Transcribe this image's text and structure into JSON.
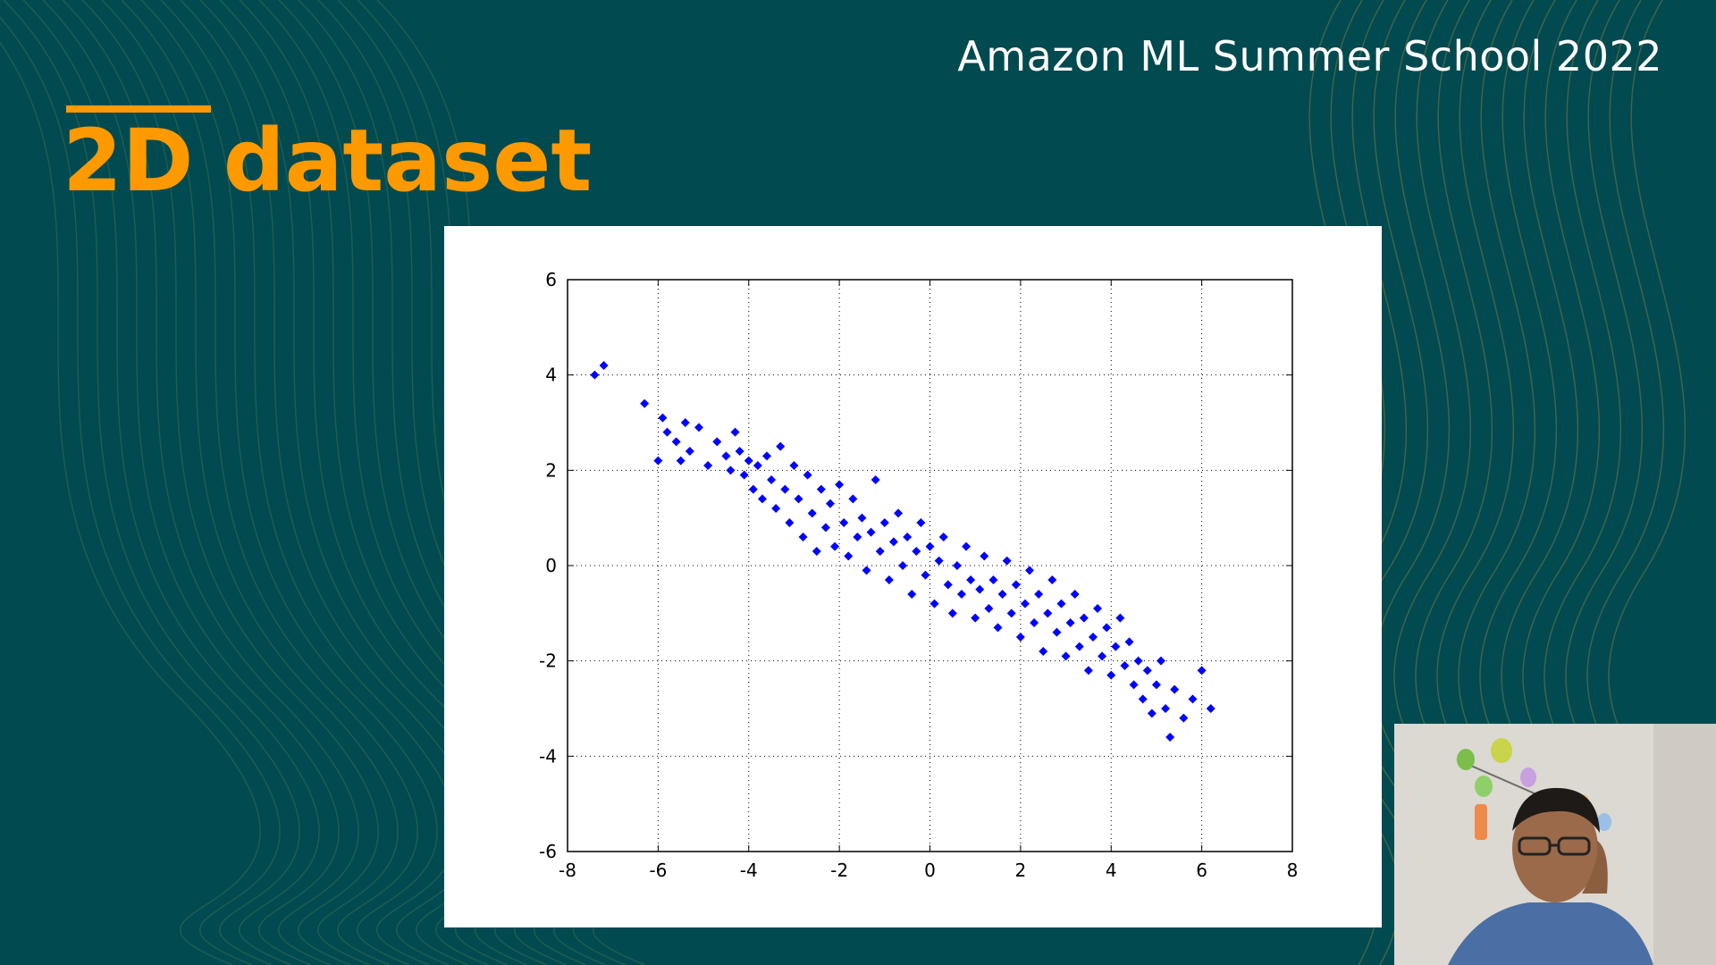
{
  "header": {
    "event_title": "Amazon ML Summer School 2022"
  },
  "slide": {
    "title": "2D dataset"
  },
  "colors": {
    "background": "#014a50",
    "accent": "#ff9900",
    "points": "#0000ff"
  },
  "chart_data": {
    "type": "scatter",
    "xlim": [
      -8,
      8
    ],
    "ylim": [
      -6,
      6
    ],
    "xticks": [
      -8,
      -6,
      -4,
      -2,
      0,
      2,
      4,
      6,
      8
    ],
    "yticks": [
      -6,
      -4,
      -2,
      0,
      2,
      4,
      6
    ],
    "grid": true,
    "marker": "diamond",
    "series": [
      {
        "color": "#0000ff",
        "points": [
          [
            -7.4,
            4.0
          ],
          [
            -7.2,
            4.2
          ],
          [
            -6.3,
            3.4
          ],
          [
            -6.0,
            2.2
          ],
          [
            -5.9,
            3.1
          ],
          [
            -5.8,
            2.8
          ],
          [
            -5.6,
            2.6
          ],
          [
            -5.5,
            2.2
          ],
          [
            -5.4,
            3.0
          ],
          [
            -5.3,
            2.4
          ],
          [
            -5.1,
            2.9
          ],
          [
            -4.9,
            2.1
          ],
          [
            -4.7,
            2.6
          ],
          [
            -4.5,
            2.3
          ],
          [
            -4.4,
            2.0
          ],
          [
            -4.3,
            2.8
          ],
          [
            -4.2,
            2.4
          ],
          [
            -4.1,
            1.9
          ],
          [
            -4.0,
            2.2
          ],
          [
            -3.9,
            1.6
          ],
          [
            -3.8,
            2.1
          ],
          [
            -3.7,
            1.4
          ],
          [
            -3.6,
            2.3
          ],
          [
            -3.5,
            1.8
          ],
          [
            -3.4,
            1.2
          ],
          [
            -3.3,
            2.5
          ],
          [
            -3.2,
            1.6
          ],
          [
            -3.1,
            0.9
          ],
          [
            -3.0,
            2.1
          ],
          [
            -2.9,
            1.4
          ],
          [
            -2.8,
            0.6
          ],
          [
            -2.7,
            1.9
          ],
          [
            -2.6,
            1.1
          ],
          [
            -2.5,
            0.3
          ],
          [
            -2.4,
            1.6
          ],
          [
            -2.3,
            0.8
          ],
          [
            -2.2,
            1.3
          ],
          [
            -2.1,
            0.4
          ],
          [
            -2.0,
            1.7
          ],
          [
            -1.9,
            0.9
          ],
          [
            -1.8,
            0.2
          ],
          [
            -1.7,
            1.4
          ],
          [
            -1.6,
            0.6
          ],
          [
            -1.5,
            1.0
          ],
          [
            -1.4,
            -0.1
          ],
          [
            -1.3,
            0.7
          ],
          [
            -1.2,
            1.8
          ],
          [
            -1.1,
            0.3
          ],
          [
            -1.0,
            0.9
          ],
          [
            -0.9,
            -0.3
          ],
          [
            -0.8,
            0.5
          ],
          [
            -0.7,
            1.1
          ],
          [
            -0.6,
            0.0
          ],
          [
            -0.5,
            0.6
          ],
          [
            -0.4,
            -0.6
          ],
          [
            -0.3,
            0.3
          ],
          [
            -0.2,
            0.9
          ],
          [
            -0.1,
            -0.2
          ],
          [
            0.0,
            0.4
          ],
          [
            0.1,
            -0.8
          ],
          [
            0.2,
            0.1
          ],
          [
            0.3,
            0.6
          ],
          [
            0.4,
            -0.4
          ],
          [
            0.5,
            -1.0
          ],
          [
            0.6,
            0.0
          ],
          [
            0.7,
            -0.6
          ],
          [
            0.8,
            0.4
          ],
          [
            0.9,
            -0.3
          ],
          [
            1.0,
            -1.1
          ],
          [
            1.1,
            -0.5
          ],
          [
            1.2,
            0.2
          ],
          [
            1.3,
            -0.9
          ],
          [
            1.4,
            -0.3
          ],
          [
            1.5,
            -1.3
          ],
          [
            1.6,
            -0.6
          ],
          [
            1.7,
            0.1
          ],
          [
            1.8,
            -1.0
          ],
          [
            1.9,
            -0.4
          ],
          [
            2.0,
            -1.5
          ],
          [
            2.1,
            -0.8
          ],
          [
            2.2,
            -0.1
          ],
          [
            2.3,
            -1.2
          ],
          [
            2.4,
            -0.6
          ],
          [
            2.5,
            -1.8
          ],
          [
            2.6,
            -1.0
          ],
          [
            2.7,
            -0.3
          ],
          [
            2.8,
            -1.4
          ],
          [
            2.9,
            -0.8
          ],
          [
            3.0,
            -1.9
          ],
          [
            3.1,
            -1.2
          ],
          [
            3.2,
            -0.6
          ],
          [
            3.3,
            -1.7
          ],
          [
            3.4,
            -1.1
          ],
          [
            3.5,
            -2.2
          ],
          [
            3.6,
            -1.5
          ],
          [
            3.7,
            -0.9
          ],
          [
            3.8,
            -1.9
          ],
          [
            3.9,
            -1.3
          ],
          [
            4.0,
            -2.3
          ],
          [
            4.1,
            -1.7
          ],
          [
            4.2,
            -1.1
          ],
          [
            4.3,
            -2.1
          ],
          [
            4.4,
            -1.6
          ],
          [
            4.5,
            -2.5
          ],
          [
            4.6,
            -2.0
          ],
          [
            4.7,
            -2.8
          ],
          [
            4.8,
            -2.2
          ],
          [
            4.9,
            -3.1
          ],
          [
            5.0,
            -2.5
          ],
          [
            5.1,
            -2.0
          ],
          [
            5.2,
            -3.0
          ],
          [
            5.3,
            -3.6
          ],
          [
            5.4,
            -2.6
          ],
          [
            5.6,
            -3.2
          ],
          [
            5.8,
            -2.8
          ],
          [
            6.0,
            -2.2
          ],
          [
            6.2,
            -3.0
          ]
        ]
      }
    ]
  }
}
